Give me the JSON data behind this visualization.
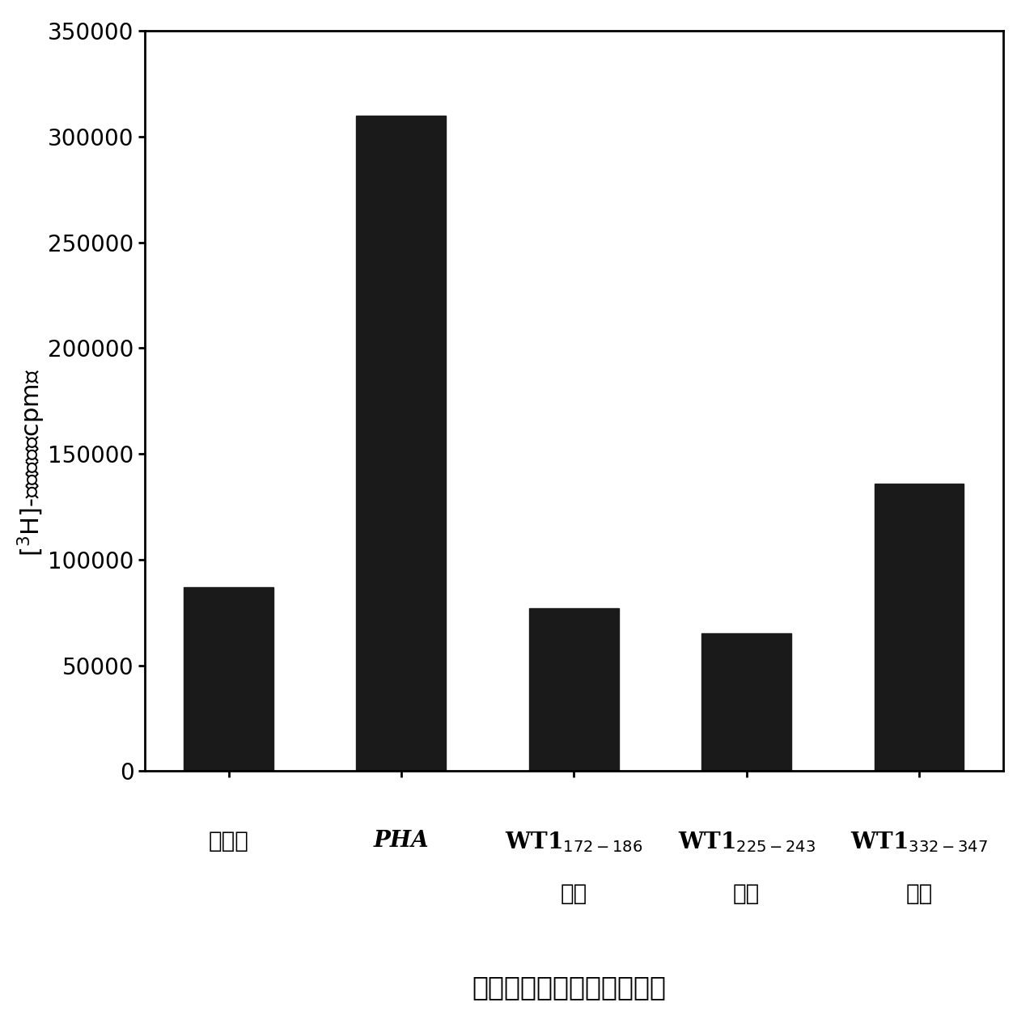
{
  "values": [
    87000,
    310000,
    77000,
    65000,
    136000
  ],
  "bar_color": "#1a1a1a",
  "ylim": [
    0,
    350000
  ],
  "yticks": [
    0,
    50000,
    100000,
    150000,
    200000,
    250000,
    300000,
    350000
  ],
  "bar_width": 0.52,
  "figsize": [
    12.78,
    12.71
  ],
  "dpi": 100,
  "ylabel_fontsize": 22,
  "xlabel_fontsize": 24,
  "tick_fontsize": 20,
  "xtick_fontsize": 20
}
